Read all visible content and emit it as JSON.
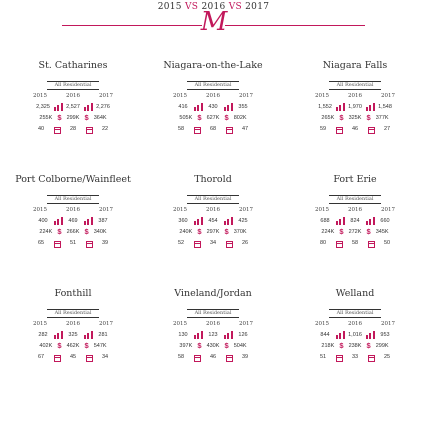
{
  "header": {
    "y1": "2015",
    "vs1": "VS",
    "y2": "2016",
    "vs2": "VS",
    "y3": "2017",
    "logo": "M"
  },
  "colors": {
    "accent": "#c2185b"
  },
  "icons": {
    "sales": "bar-chart-icon",
    "price": "dollar-icon",
    "dom": "calendar-icon"
  },
  "cards": [
    {
      "city": "St. Catharines",
      "sub": "All Residential",
      "years": [
        "2015",
        "2016",
        "2017"
      ],
      "sales": [
        "2,325",
        "2,527",
        "2,276"
      ],
      "price": [
        "255K",
        "299K",
        "364K"
      ],
      "dom": [
        "40",
        "28",
        "22"
      ]
    },
    {
      "city": "Niagara-on-the-Lake",
      "sub": "All Residential",
      "years": [
        "2015",
        "2016",
        "2017"
      ],
      "sales": [
        "416",
        "430",
        "355"
      ],
      "price": [
        "505K",
        "627K",
        "802K"
      ],
      "dom": [
        "58",
        "68",
        "47"
      ]
    },
    {
      "city": "Niagara Falls",
      "sub": "All Residential",
      "years": [
        "2015",
        "2016",
        "2017"
      ],
      "sales": [
        "1,552",
        "1,970",
        "1,548"
      ],
      "price": [
        "265K",
        "325K",
        "377K"
      ],
      "dom": [
        "59",
        "46",
        "27"
      ]
    },
    {
      "city": "Port Colborne/Wainfleet",
      "sub": "All Residential",
      "years": [
        "2015",
        "2016",
        "2017"
      ],
      "sales": [
        "400",
        "469",
        "387"
      ],
      "price": [
        "224K",
        "266K",
        "340K"
      ],
      "dom": [
        "65",
        "51",
        "39"
      ]
    },
    {
      "city": "Thorold",
      "sub": "All Residential",
      "years": [
        "2015",
        "2016",
        "2017"
      ],
      "sales": [
        "360",
        "454",
        "425"
      ],
      "price": [
        "240K",
        "297K",
        "370K"
      ],
      "dom": [
        "52",
        "34",
        "26"
      ]
    },
    {
      "city": "Fort Erie",
      "sub": "All Residential",
      "years": [
        "2015",
        "2016",
        "2017"
      ],
      "sales": [
        "688",
        "824",
        "660"
      ],
      "price": [
        "224K",
        "272K",
        "345K"
      ],
      "dom": [
        "80",
        "58",
        "50"
      ]
    },
    {
      "city": "Fonthill",
      "sub": "All Residential",
      "years": [
        "2015",
        "2016",
        "2017"
      ],
      "sales": [
        "282",
        "325",
        "281"
      ],
      "price": [
        "402K",
        "462K",
        "547K"
      ],
      "dom": [
        "67",
        "45",
        "34"
      ]
    },
    {
      "city": "Vineland/Jordan",
      "sub": "All Residential",
      "years": [
        "2015",
        "2016",
        "2017"
      ],
      "sales": [
        "130",
        "123",
        "126"
      ],
      "price": [
        "397K",
        "430K",
        "504K"
      ],
      "dom": [
        "58",
        "46",
        "39"
      ]
    },
    {
      "city": "Welland",
      "sub": "All Residential",
      "years": [
        "2015",
        "2016",
        "2017"
      ],
      "sales": [
        "844",
        "1,016",
        "953"
      ],
      "price": [
        "218K",
        "238K",
        "299K"
      ],
      "dom": [
        "51",
        "33",
        "25"
      ]
    }
  ]
}
